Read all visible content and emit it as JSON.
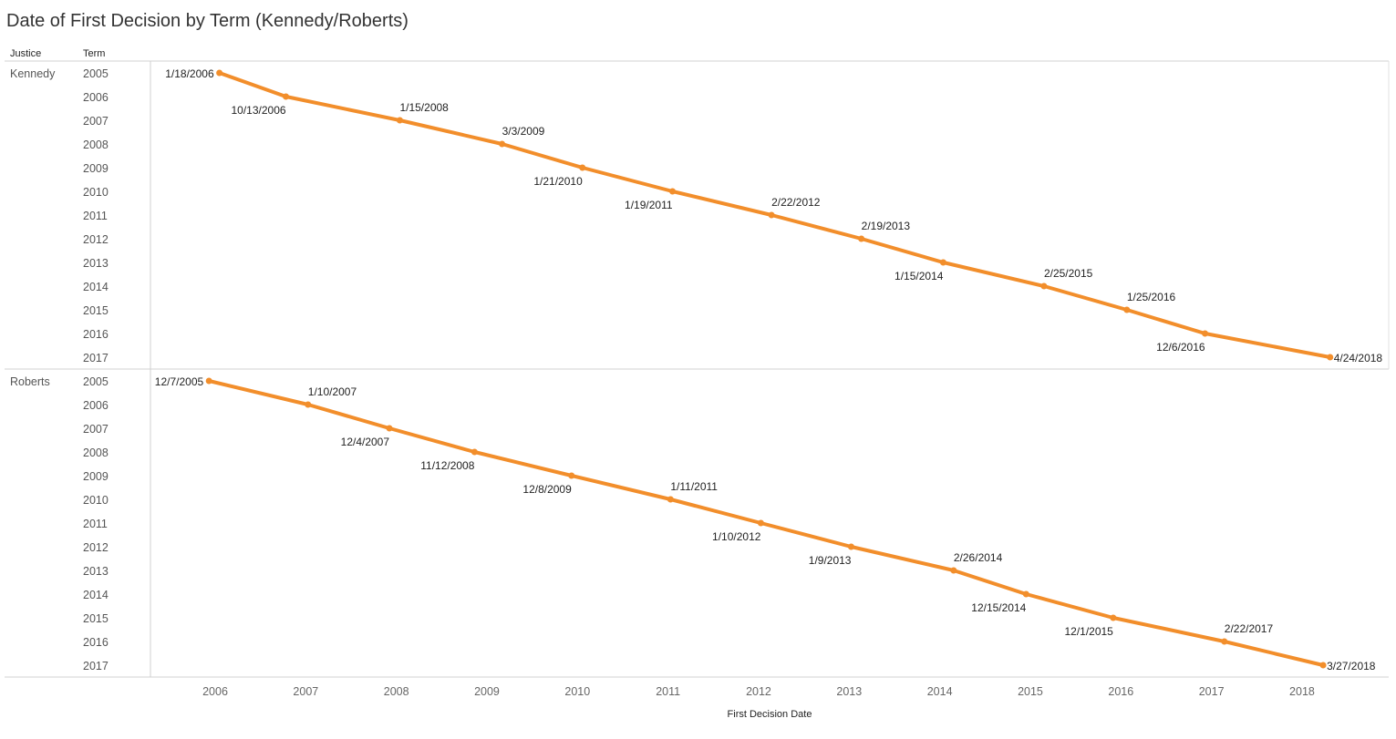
{
  "chart_data": {
    "type": "line",
    "title": "Date of First Decision by Term (Kennedy/Roberts)",
    "row_headers": [
      "Justice",
      "Term"
    ],
    "xlabel": "First Decision Date",
    "x_ticks": [
      "2006",
      "2007",
      "2008",
      "2009",
      "2010",
      "2011",
      "2012",
      "2013",
      "2014",
      "2015",
      "2016",
      "2017",
      "2018"
    ],
    "color": "#F28E2B",
    "series": [
      {
        "name": "Kennedy",
        "points": [
          {
            "term": "2005",
            "date": "1/18/2006",
            "label_pos": "left"
          },
          {
            "term": "2006",
            "date": "10/13/2006",
            "label_pos": "below"
          },
          {
            "term": "2007",
            "date": "1/15/2008",
            "label_pos": "above"
          },
          {
            "term": "2008",
            "date": "3/3/2009",
            "label_pos": "above"
          },
          {
            "term": "2009",
            "date": "1/21/2010",
            "label_pos": "below"
          },
          {
            "term": "2010",
            "date": "1/19/2011",
            "label_pos": "below"
          },
          {
            "term": "2011",
            "date": "2/22/2012",
            "label_pos": "above"
          },
          {
            "term": "2012",
            "date": "2/19/2013",
            "label_pos": "above"
          },
          {
            "term": "2013",
            "date": "1/15/2014",
            "label_pos": "below"
          },
          {
            "term": "2014",
            "date": "2/25/2015",
            "label_pos": "above"
          },
          {
            "term": "2015",
            "date": "1/25/2016",
            "label_pos": "above"
          },
          {
            "term": "2016",
            "date": "12/6/2016",
            "label_pos": "below"
          },
          {
            "term": "2017",
            "date": "4/24/2018",
            "label_pos": "right"
          }
        ]
      },
      {
        "name": "Roberts",
        "points": [
          {
            "term": "2005",
            "date": "12/7/2005",
            "label_pos": "left"
          },
          {
            "term": "2006",
            "date": "1/10/2007",
            "label_pos": "above"
          },
          {
            "term": "2007",
            "date": "12/4/2007",
            "label_pos": "below"
          },
          {
            "term": "2008",
            "date": "11/12/2008",
            "label_pos": "below"
          },
          {
            "term": "2009",
            "date": "12/8/2009",
            "label_pos": "below"
          },
          {
            "term": "2010",
            "date": "1/11/2011",
            "label_pos": "above"
          },
          {
            "term": "2011",
            "date": "1/10/2012",
            "label_pos": "below"
          },
          {
            "term": "2012",
            "date": "1/9/2013",
            "label_pos": "below"
          },
          {
            "term": "2013",
            "date": "2/26/2014",
            "label_pos": "above"
          },
          {
            "term": "2014",
            "date": "12/15/2014",
            "label_pos": "below"
          },
          {
            "term": "2015",
            "date": "12/1/2015",
            "label_pos": "below"
          },
          {
            "term": "2016",
            "date": "2/22/2017",
            "label_pos": "above"
          },
          {
            "term": "2017",
            "date": "3/27/2018",
            "label_pos": "right"
          }
        ]
      }
    ]
  }
}
